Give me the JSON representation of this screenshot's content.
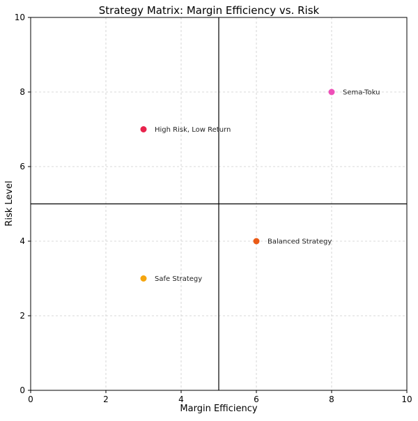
{
  "chart_data": {
    "type": "scatter",
    "title": "Strategy Matrix: Margin Efficiency vs. Risk",
    "xlabel": "Margin Efficiency",
    "ylabel": "Risk Level",
    "xlim": [
      0,
      10
    ],
    "ylim": [
      0,
      10
    ],
    "xticks": [
      "0",
      "2",
      "4",
      "6",
      "8",
      "10"
    ],
    "yticks": [
      "0",
      "2",
      "4",
      "6",
      "8",
      "10"
    ],
    "grid": true,
    "reference_lines": {
      "x": 5,
      "y": 5
    },
    "points": [
      {
        "label": "Sema-Toku",
        "x": 8,
        "y": 8,
        "color": "#ee4fb8"
      },
      {
        "label": "High Risk, Low Return",
        "x": 3,
        "y": 7,
        "color": "#e8234c"
      },
      {
        "label": "Balanced Strategy",
        "x": 6,
        "y": 4,
        "color": "#ea5a16"
      },
      {
        "label": "Safe Strategy",
        "x": 3,
        "y": 3,
        "color": "#f5a50e"
      }
    ]
  }
}
